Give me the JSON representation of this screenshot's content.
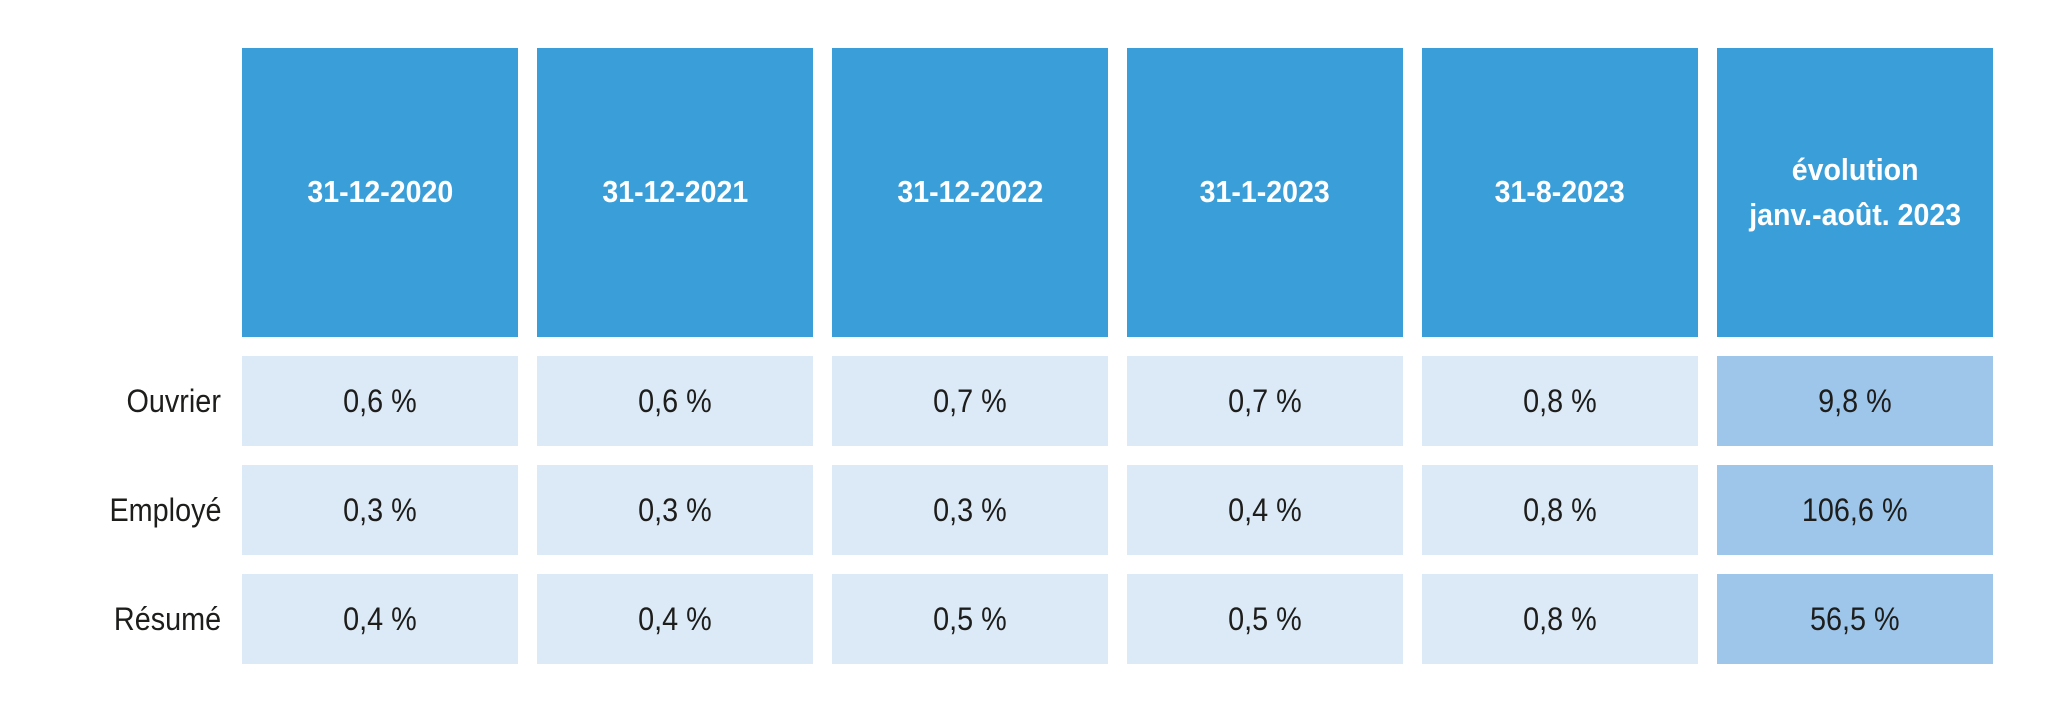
{
  "chart_data": {
    "type": "table",
    "title": "",
    "categories": [
      "31-12-2020",
      "31-12-2021",
      "31-12-2022",
      "31-1-2023",
      "31-8-2023",
      "évolution janv.-août. 2023"
    ],
    "series": [
      {
        "name": "Ouvrier",
        "values": [
          "0,6 %",
          "0,6 %",
          "0,7 %",
          "0,7 %",
          "0,8 %",
          "9,8 %"
        ]
      },
      {
        "name": "Employé",
        "values": [
          "0,3 %",
          "0,3 %",
          "0,3 %",
          "0,4 %",
          "0,8 %",
          "106,6 %"
        ]
      },
      {
        "name": "Résumé",
        "values": [
          "0,4 %",
          "0,4 %",
          "0,5 %",
          "0,5 %",
          "0,8 %",
          "56,5 %"
        ]
      }
    ],
    "layout_hints": {
      "highlight_last_column": true,
      "grid": "off",
      "legend": "none"
    }
  },
  "table": {
    "evolution_header": {
      "line1": "évolution",
      "line2": "janv.-août. 2023"
    }
  },
  "colors": {
    "header_bg": "#3A9FD9",
    "header_text": "#FFFFFF",
    "cell_bg": "#DCE9F6",
    "evolution_cell_bg": "#9EC5EA",
    "body_text": "#1D1D1B",
    "background": "#FFFFFF"
  }
}
